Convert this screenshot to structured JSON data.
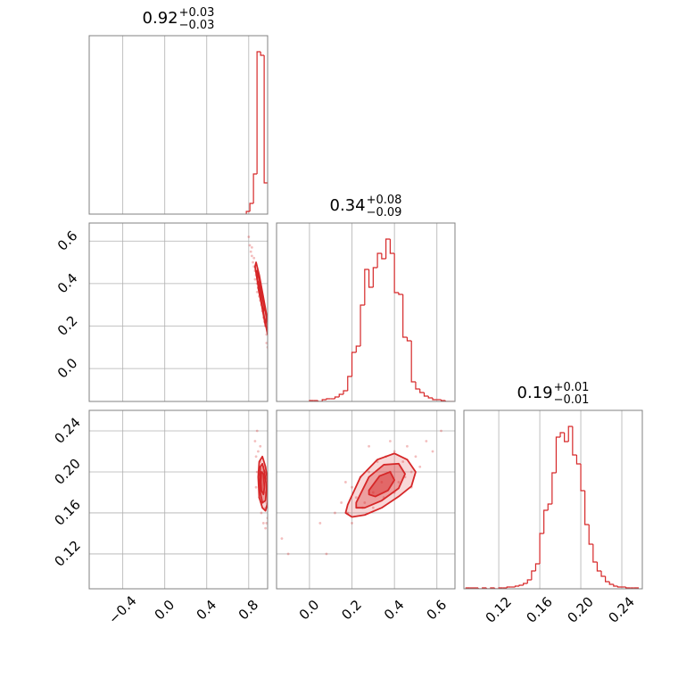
{
  "chart_data": {
    "type": "corner",
    "color": "#d62728",
    "grid": true,
    "params": [
      {
        "lim": [
          -0.72,
          0.98
        ],
        "ticks": [
          {
            "value": -0.4,
            "label": "−0.4"
          },
          {
            "value": 0,
            "label": "0.0"
          },
          0.4,
          0.8
        ],
        "title": {
          "value": "0.92",
          "plus": "+0.03",
          "minus": "−0.03"
        },
        "countlim": [
          0,
          200
        ],
        "bins": [
          0.777,
          0.811,
          0.845,
          0.879,
          0.913,
          0.947,
          0.981
        ],
        "counts": [
          3,
          12,
          45,
          182,
          178,
          35
        ]
      },
      {
        "lim": [
          -0.155,
          0.685
        ],
        "ticks": [
          {
            "value": 0,
            "label": "0.0"
          },
          0.2,
          0.4,
          0.6
        ],
        "title": {
          "value": "0.34",
          "plus": "+0.08",
          "minus": "−0.09"
        },
        "countlim": [
          0,
          200
        ],
        "bins": [
          0,
          0.02,
          0.04,
          0.06,
          0.08,
          0.1,
          0.12,
          0.14,
          0.16,
          0.18,
          0.2,
          0.22,
          0.24,
          0.26,
          0.28,
          0.3,
          0.32,
          0.34,
          0.36,
          0.38,
          0.4,
          0.42,
          0.44,
          0.46,
          0.48,
          0.5,
          0.52,
          0.54,
          0.56,
          0.58,
          0.6,
          0.62,
          0.64,
          0.66,
          0.68
        ],
        "counts": [
          1,
          1,
          0,
          2,
          3,
          3,
          5,
          8,
          12,
          28,
          55,
          62,
          108,
          148,
          128,
          150,
          166,
          160,
          182,
          166,
          122,
          120,
          72,
          68,
          22,
          14,
          10,
          6,
          4,
          2,
          2,
          1,
          0,
          0
        ]
      },
      {
        "lim": [
          0.086,
          0.26
        ],
        "ticks": [
          0.12,
          0.16,
          {
            "value": 0.2,
            "label": "0.20"
          },
          0.24
        ],
        "title": {
          "value": "0.19",
          "plus": "+0.01",
          "minus": "−0.01"
        },
        "countlim": [
          0,
          200
        ],
        "bins": [
          0.088,
          0.092,
          0.096,
          0.1,
          0.104,
          0.108,
          0.112,
          0.116,
          0.12,
          0.124,
          0.128,
          0.132,
          0.136,
          0.14,
          0.144,
          0.148,
          0.152,
          0.156,
          0.16,
          0.164,
          0.168,
          0.172,
          0.176,
          0.18,
          0.184,
          0.188,
          0.192,
          0.196,
          0.2,
          0.204,
          0.208,
          0.212,
          0.216,
          0.22,
          0.224,
          0.228,
          0.232,
          0.236,
          0.24,
          0.244,
          0.248,
          0.252,
          0.256
        ],
        "counts": [
          1,
          1,
          1,
          0,
          1,
          0,
          1,
          0,
          1,
          1,
          2,
          2,
          3,
          4,
          6,
          10,
          20,
          28,
          62,
          88,
          95,
          130,
          170,
          175,
          165,
          182,
          150,
          140,
          110,
          72,
          50,
          30,
          20,
          14,
          8,
          5,
          3,
          2,
          2,
          1,
          1,
          1
        ]
      }
    ],
    "pairs": [
      {
        "points": {
          "x": [
            0.8,
            0.81,
            0.82,
            0.83,
            0.84,
            0.85,
            0.86,
            0.86,
            0.87,
            0.88,
            0.88,
            0.89,
            0.9,
            0.91,
            0.92,
            0.93,
            0.94,
            0.95,
            0.96,
            0.97,
            0.97,
            0.98,
            0.83,
            0.85,
            0.9,
            0.94
          ],
          "y": [
            0.62,
            0.58,
            0.55,
            0.53,
            0.5,
            0.48,
            0.46,
            0.42,
            0.44,
            0.4,
            0.36,
            0.38,
            0.34,
            0.32,
            0.3,
            0.27,
            0.24,
            0.22,
            0.2,
            0.16,
            0.12,
            0.1,
            0.57,
            0.52,
            0.39,
            0.29
          ]
        },
        "contours": [
          {
            "x": [
              0.87,
              0.9,
              0.93,
              0.96,
              0.98,
              0.98,
              0.94,
              0.91,
              0.88,
              0.86
            ],
            "y": [
              0.5,
              0.44,
              0.36,
              0.28,
              0.22,
              0.16,
              0.26,
              0.34,
              0.42,
              0.48
            ]
          },
          {
            "x": [
              0.88,
              0.91,
              0.94,
              0.97,
              0.96,
              0.93,
              0.9,
              0.88
            ],
            "y": [
              0.46,
              0.4,
              0.32,
              0.24,
              0.2,
              0.28,
              0.36,
              0.42
            ]
          },
          {
            "x": [
              0.89,
              0.92,
              0.95,
              0.94,
              0.91,
              0.89
            ],
            "y": [
              0.41,
              0.35,
              0.29,
              0.27,
              0.33,
              0.38
            ]
          }
        ]
      },
      {
        "points": {
          "x": [
            0.86,
            0.87,
            0.88,
            0.88,
            0.89,
            0.9,
            0.9,
            0.91,
            0.92,
            0.93,
            0.93,
            0.94,
            0.95,
            0.96,
            0.96,
            0.97,
            0.98,
            0.98,
            0.87,
            0.91,
            0.95,
            0.97
          ],
          "y": [
            0.23,
            0.215,
            0.24,
            0.2,
            0.22,
            0.19,
            0.175,
            0.21,
            0.16,
            0.2,
            0.17,
            0.15,
            0.18,
            0.165,
            0.145,
            0.17,
            0.155,
            0.19,
            0.185,
            0.225,
            0.205,
            0.15
          ]
        },
        "contours": [
          {
            "x": [
              0.9,
              0.93,
              0.96,
              0.98,
              0.98,
              0.96,
              0.93,
              0.9,
              0.89
            ],
            "y": [
              0.21,
              0.215,
              0.205,
              0.19,
              0.17,
              0.162,
              0.165,
              0.175,
              0.195
            ]
          },
          {
            "x": [
              0.91,
              0.93,
              0.95,
              0.97,
              0.96,
              0.93,
              0.91,
              0.905
            ],
            "y": [
              0.205,
              0.208,
              0.2,
              0.185,
              0.172,
              0.17,
              0.18,
              0.192
            ]
          },
          {
            "x": [
              0.92,
              0.94,
              0.95,
              0.94,
              0.92,
              0.915
            ],
            "y": [
              0.2,
              0.198,
              0.185,
              0.178,
              0.182,
              0.19
            ]
          }
        ]
      },
      {
        "points": {
          "x": [
            0.05,
            0.08,
            0.12,
            0.15,
            0.18,
            0.2,
            0.22,
            0.24,
            0.26,
            0.28,
            0.3,
            0.32,
            0.34,
            0.36,
            0.38,
            0.4,
            0.42,
            0.44,
            0.46,
            0.48,
            0.5,
            0.52,
            0.55,
            0.58,
            0.62,
            0.2,
            0.25,
            0.3,
            0.35,
            0.4,
            0.45,
            0.28,
            0.38,
            0.17,
            0.48,
            -0.13,
            -0.1
          ],
          "y": [
            0.15,
            0.12,
            0.16,
            0.17,
            0.16,
            0.185,
            0.175,
            0.195,
            0.17,
            0.2,
            0.18,
            0.21,
            0.19,
            0.215,
            0.2,
            0.22,
            0.19,
            0.21,
            0.225,
            0.2,
            0.215,
            0.205,
            0.23,
            0.22,
            0.24,
            0.15,
            0.165,
            0.165,
            0.175,
            0.18,
            0.195,
            0.225,
            0.23,
            0.19,
            0.185,
            0.135,
            0.12
          ]
        },
        "contours": [
          {
            "x": [
              0.18,
              0.24,
              0.32,
              0.4,
              0.46,
              0.5,
              0.48,
              0.42,
              0.34,
              0.26,
              0.2,
              0.17
            ],
            "y": [
              0.168,
              0.195,
              0.212,
              0.218,
              0.212,
              0.2,
              0.186,
              0.176,
              0.165,
              0.158,
              0.156,
              0.16
            ]
          },
          {
            "x": [
              0.22,
              0.28,
              0.35,
              0.42,
              0.45,
              0.42,
              0.34,
              0.26,
              0.22
            ],
            "y": [
              0.17,
              0.195,
              0.207,
              0.208,
              0.198,
              0.184,
              0.172,
              0.165,
              0.165
            ]
          },
          {
            "x": [
              0.28,
              0.33,
              0.38,
              0.4,
              0.37,
              0.31,
              0.28
            ],
            "y": [
              0.182,
              0.196,
              0.2,
              0.192,
              0.182,
              0.176,
              0.178
            ]
          }
        ]
      }
    ]
  }
}
